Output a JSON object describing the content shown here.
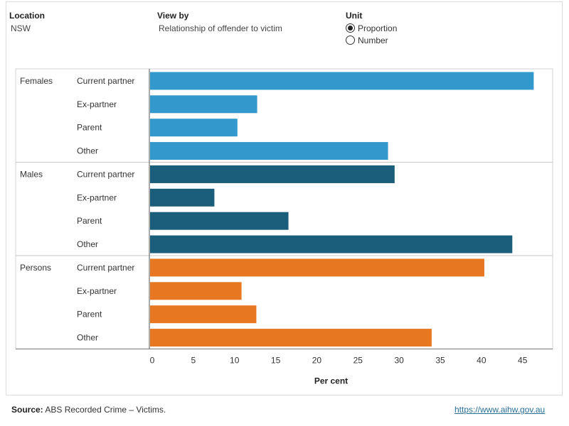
{
  "filters": {
    "location": {
      "label": "Location",
      "value": "NSW"
    },
    "view_by": {
      "label": "View by",
      "value": "Relationship of offender to victim"
    },
    "unit": {
      "label": "Unit",
      "options": [
        "Proportion",
        "Number"
      ],
      "selected": "Proportion"
    }
  },
  "chart_data": {
    "type": "bar",
    "orientation": "horizontal",
    "xlabel": "Per cent",
    "xlim": [
      0,
      49
    ],
    "xticks": [
      0,
      5,
      10,
      15,
      20,
      25,
      30,
      35,
      40,
      45
    ],
    "categories": [
      "Current partner",
      "Ex-partner",
      "Parent",
      "Other"
    ],
    "series": [
      {
        "name": "Females",
        "color": "#3399cc",
        "values": [
          46.7,
          13.1,
          10.7,
          29.0
        ]
      },
      {
        "name": "Males",
        "color": "#1b5e7c",
        "values": [
          29.8,
          7.9,
          16.9,
          44.1
        ]
      },
      {
        "name": "Persons",
        "color": "#e87722",
        "values": [
          40.7,
          11.2,
          13.0,
          34.3
        ]
      }
    ],
    "grid": false
  },
  "footer": {
    "source_label": "Source:",
    "source_text": " ABS Recorded Crime – Victims.",
    "link": "https://www.aihw.gov.au"
  }
}
